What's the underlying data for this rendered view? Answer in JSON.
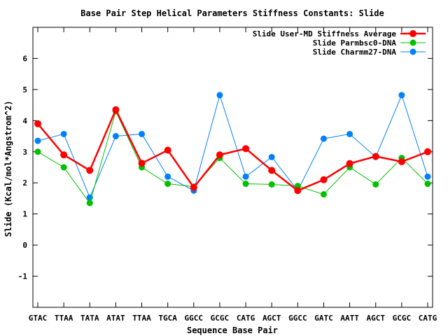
{
  "chart_data": {
    "type": "line",
    "title": "Base Pair Step Helical Parameters Stiffness Constants: Slide",
    "xlabel": "Sequence Base Pair",
    "ylabel": "Slide (Kcal/mol*Angstrom^2)",
    "ylim": [
      -2,
      7
    ],
    "yticks": [
      "-1",
      "0",
      "1",
      "2",
      "3",
      "4",
      "5",
      "6"
    ],
    "ytick_values": [
      -1,
      0,
      1,
      2,
      3,
      4,
      5,
      6
    ],
    "categories": [
      "GTAC",
      "TTAA",
      "TATA",
      "ATAT",
      "TTAA",
      "TGCA",
      "GGCC",
      "GCGC",
      "CATG",
      "AGCT",
      "GGCC",
      "GATC",
      "AATT",
      "AGCT",
      "GCGC",
      "CATG"
    ],
    "grid": false,
    "legend_position": "top-right",
    "series": [
      {
        "name": "Slide User-MD Stiffness Average",
        "color": "#ff0000",
        "values": [
          3.9,
          2.9,
          2.4,
          4.35,
          2.63,
          3.05,
          1.85,
          2.9,
          3.1,
          2.4,
          1.75,
          2.1,
          2.62,
          2.85,
          2.68,
          3.0
        ]
      },
      {
        "name": "Slide Parmbsc0-DNA",
        "color": "#00c000",
        "values": [
          3.0,
          2.5,
          1.35,
          4.3,
          2.5,
          1.97,
          1.88,
          2.8,
          1.97,
          1.95,
          1.9,
          1.63,
          2.5,
          1.95,
          2.8,
          1.97
        ]
      },
      {
        "name": "Slide Charmm27-DNA",
        "color": "#0080ff",
        "values": [
          3.35,
          3.57,
          1.53,
          3.5,
          3.57,
          2.2,
          1.75,
          4.82,
          2.2,
          2.83,
          1.75,
          3.42,
          3.57,
          2.83,
          4.82,
          2.2
        ]
      }
    ]
  }
}
